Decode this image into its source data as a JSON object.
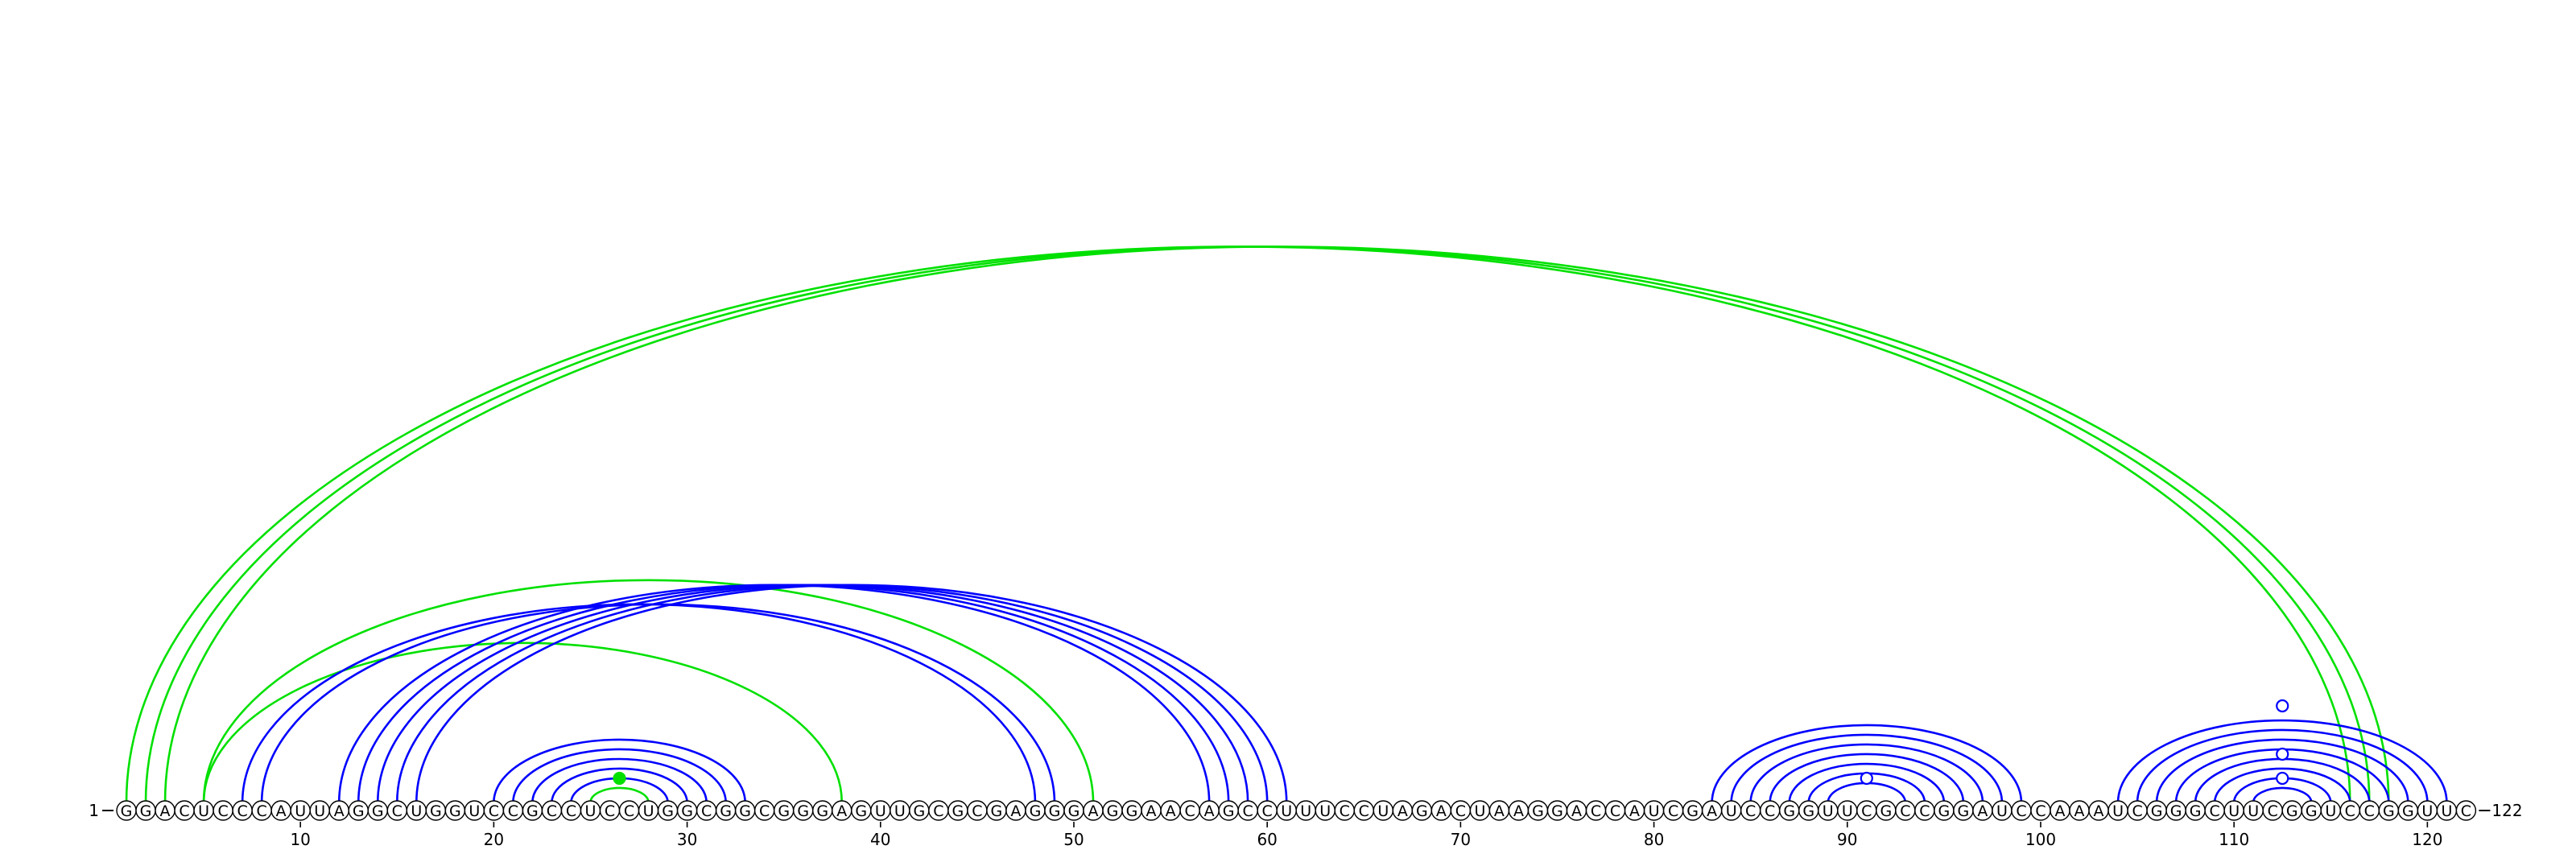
{
  "sequence": "GGACUCCCAUUAGGCUGGUCCGCCUCCUGGCGGCGGGAGUUGCGCGAGGGAGGAACAGCCUUUCCUAGACUAAGGACCAUCGAUCCGGUUCGCCGGAUCCAAAUCGGGCUUCGGUCCGGUUC",
  "start_label": "1",
  "end_label": "122",
  "position_labels": [
    "10",
    "20",
    "30",
    "40",
    "50",
    "60",
    "70",
    "80",
    "90",
    "100",
    "110",
    "120"
  ],
  "colors": {
    "blue": "#0000ff",
    "green": "#00e000",
    "circle_fill": "#ffffff",
    "circle_stroke": "#000000"
  },
  "arcs": [
    {
      "i": 1,
      "j": 116,
      "color": "green"
    },
    {
      "i": 2,
      "j": 117,
      "color": "green"
    },
    {
      "i": 3,
      "j": 118,
      "color": "green"
    },
    {
      "i": 5,
      "j": 51,
      "color": "green"
    },
    {
      "i": 5,
      "j": 38,
      "color": "green"
    },
    {
      "i": 7,
      "j": 48,
      "color": "blue"
    },
    {
      "i": 8,
      "j": 49,
      "color": "blue"
    },
    {
      "i": 12,
      "j": 57,
      "color": "blue"
    },
    {
      "i": 13,
      "j": 58,
      "color": "blue"
    },
    {
      "i": 14,
      "j": 59,
      "color": "blue"
    },
    {
      "i": 15,
      "j": 60,
      "color": "blue"
    },
    {
      "i": 16,
      "j": 61,
      "color": "blue"
    },
    {
      "i": 20,
      "j": 33,
      "color": "blue"
    },
    {
      "i": 21,
      "j": 32,
      "color": "blue"
    },
    {
      "i": 22,
      "j": 31,
      "color": "blue"
    },
    {
      "i": 23,
      "j": 30,
      "color": "blue"
    },
    {
      "i": 24,
      "j": 29,
      "color": "blue"
    },
    {
      "i": 25,
      "j": 28,
      "color": "green"
    },
    {
      "i": 83,
      "j": 99,
      "color": "blue"
    },
    {
      "i": 84,
      "j": 98,
      "color": "blue"
    },
    {
      "i": 85,
      "j": 97,
      "color": "blue"
    },
    {
      "i": 86,
      "j": 96,
      "color": "blue"
    },
    {
      "i": 87,
      "j": 95,
      "color": "blue"
    },
    {
      "i": 88,
      "j": 94,
      "color": "blue"
    },
    {
      "i": 89,
      "j": 93,
      "color": "blue"
    },
    {
      "i": 104,
      "j": 121,
      "color": "blue"
    },
    {
      "i": 105,
      "j": 120,
      "color": "blue"
    },
    {
      "i": 106,
      "j": 119,
      "color": "blue"
    },
    {
      "i": 107,
      "j": 118,
      "color": "blue"
    },
    {
      "i": 108,
      "j": 117,
      "color": "blue"
    },
    {
      "i": 109,
      "j": 116,
      "color": "blue"
    },
    {
      "i": 110,
      "j": 115,
      "color": "blue"
    },
    {
      "i": 111,
      "j": 114,
      "color": "blue"
    }
  ],
  "markers": [
    {
      "pos": 26.5,
      "height": 1.0,
      "kind": "filled-green"
    },
    {
      "pos": 91,
      "height": 1.0,
      "kind": "open-blue"
    },
    {
      "pos": 112.5,
      "height": 1.0,
      "kind": "open-blue"
    },
    {
      "pos": 112.5,
      "height": 2.0,
      "kind": "open-blue"
    },
    {
      "pos": 112.5,
      "height": 4.0,
      "kind": "open-blue"
    }
  ]
}
